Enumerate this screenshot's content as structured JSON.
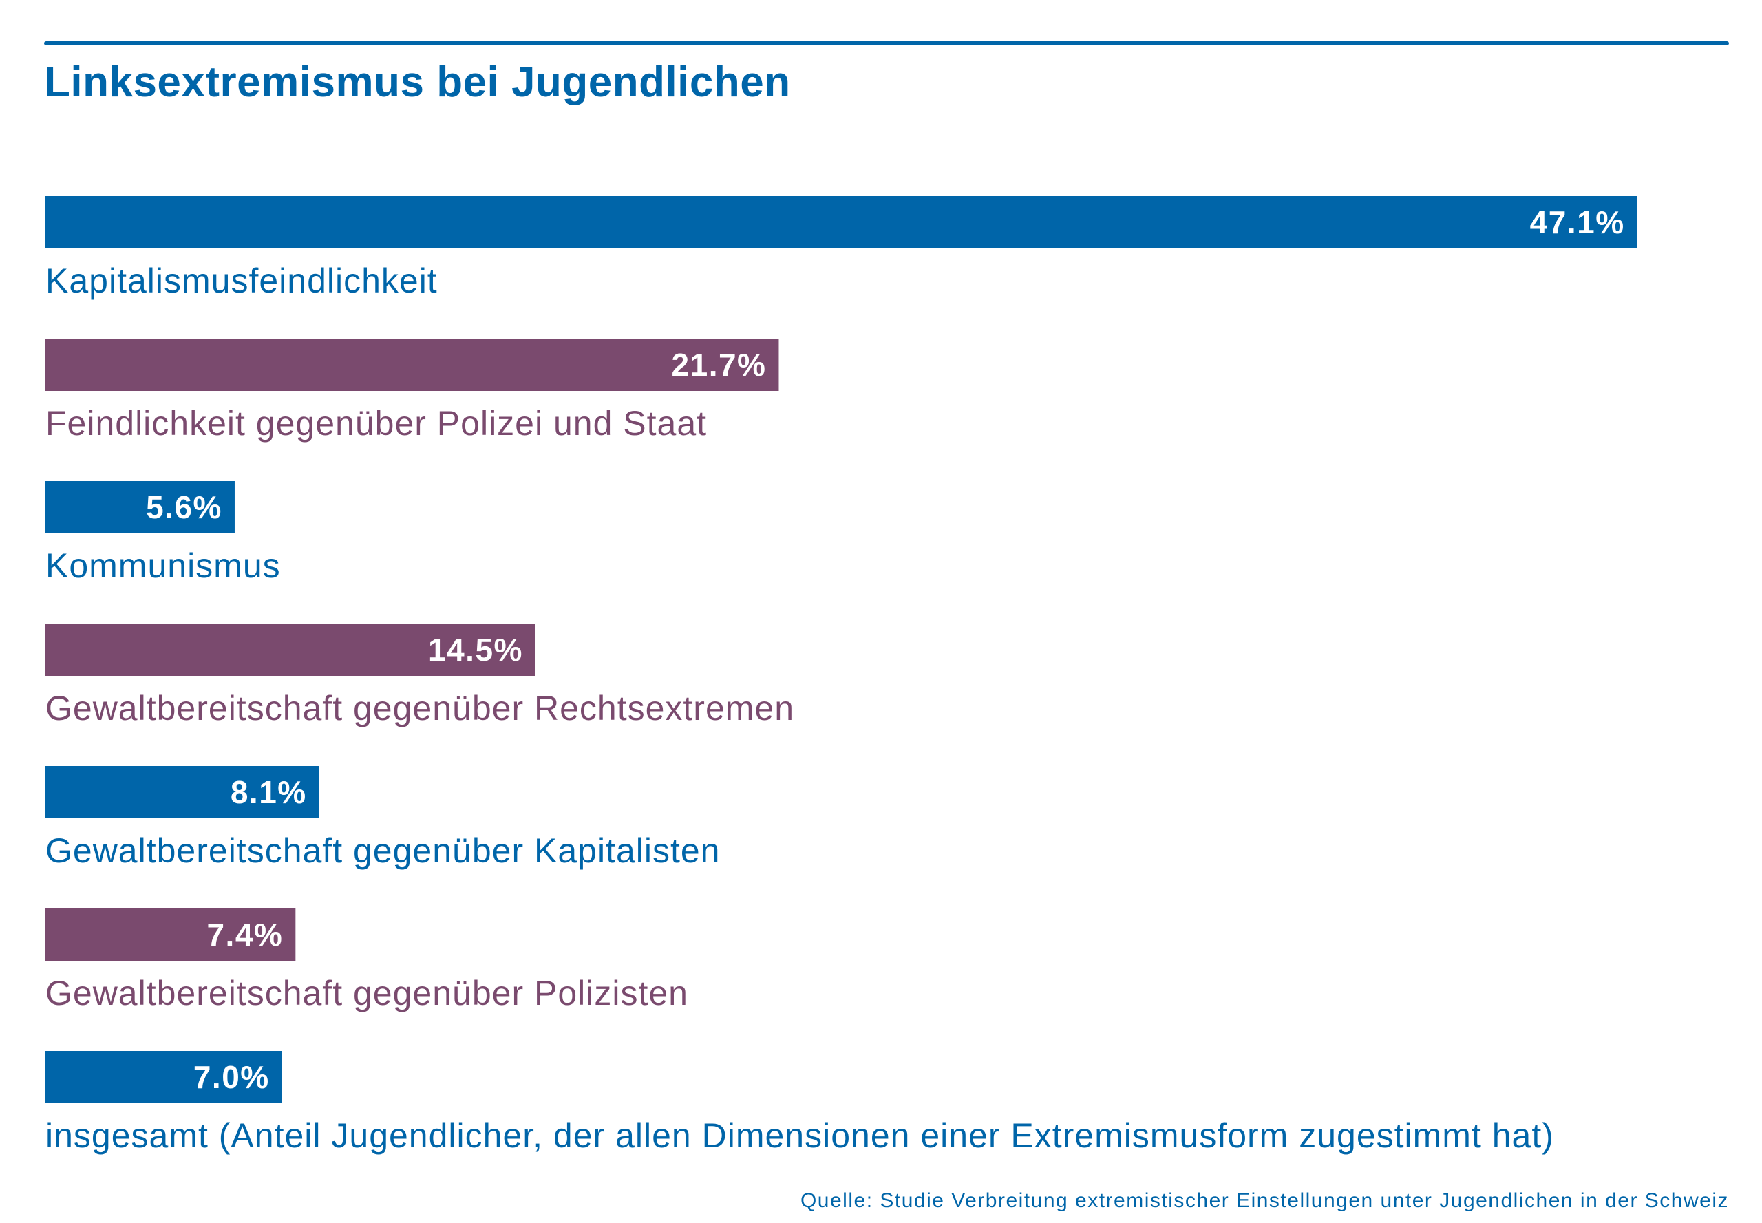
{
  "title": "Linksextremismus bei Jugendlichen",
  "source": "Quelle: Studie Verbreitung extremistischer Einstellungen unter Jugendlichen in der Schweiz",
  "colors": {
    "blue": "#0065a9",
    "purple": "#7a4a6e"
  },
  "chart_data": {
    "type": "bar",
    "orientation": "horizontal",
    "title": "Linksextremismus bei Jugendlichen",
    "xlim": [
      0,
      50
    ],
    "grid": false,
    "categories": [
      "Kapitalismusfeindlichkeit",
      "Feindlichkeit gegenüber Polizei und Staat",
      "Kommunismus",
      "Gewaltbereitschaft gegenüber Rechtsextremen",
      "Gewaltbereitschaft gegenüber Kapitalisten",
      "Gewaltbereitschaft gegenüber Polizisten",
      "insgesamt (Anteil Jugendlicher, der allen Dimensionen einer Extremismusform zugestimmt hat)"
    ],
    "values": [
      47.1,
      21.7,
      5.6,
      14.5,
      8.1,
      7.4,
      7.0
    ],
    "value_labels": [
      "47.1%",
      "21.7%",
      "5.6%",
      "14.5%",
      "8.1%",
      "7.4%",
      "7.0%"
    ],
    "bar_colors": [
      "#0065a9",
      "#7a4a6e",
      "#0065a9",
      "#7a4a6e",
      "#0065a9",
      "#7a4a6e",
      "#0065a9"
    ]
  }
}
